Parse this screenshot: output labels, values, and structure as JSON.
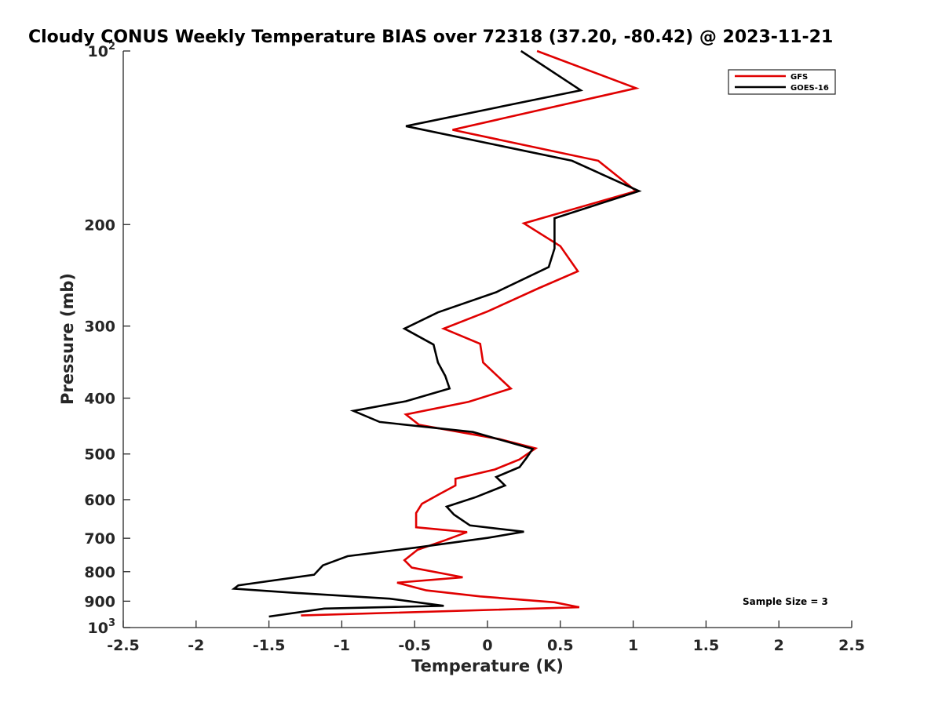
{
  "chart_data": {
    "type": "line",
    "title": "Cloudy CONUS Weekly Temperature BIAS over 72318 (37.20, -80.42) @ 2023-11-21",
    "xlabel": "Temperature (K)",
    "ylabel": "Pressure (mb)",
    "xlim": [
      -2.5,
      2.5
    ],
    "ylim": [
      100,
      1000
    ],
    "yscale": "log",
    "y_reversed": true,
    "grid": false,
    "legend_position": "top-right",
    "x_ticks": [
      {
        "value": -2.5,
        "label": "-2.5"
      },
      {
        "value": -2,
        "label": "-2"
      },
      {
        "value": -1.5,
        "label": "-1.5"
      },
      {
        "value": -1,
        "label": "-1"
      },
      {
        "value": -0.5,
        "label": "-0.5"
      },
      {
        "value": 0,
        "label": "0"
      },
      {
        "value": 0.5,
        "label": "0.5"
      },
      {
        "value": 1,
        "label": "1"
      },
      {
        "value": 1.5,
        "label": "1.5"
      },
      {
        "value": 2,
        "label": "2"
      },
      {
        "value": 2.5,
        "label": "2.5"
      }
    ],
    "y_ticks": [
      {
        "value": 100,
        "base": "10",
        "exp": "2"
      },
      {
        "value": 200,
        "label": "200"
      },
      {
        "value": 300,
        "label": "300"
      },
      {
        "value": 400,
        "label": "400"
      },
      {
        "value": 500,
        "label": "500"
      },
      {
        "value": 600,
        "label": "600"
      },
      {
        "value": 700,
        "label": "700"
      },
      {
        "value": 800,
        "label": "800"
      },
      {
        "value": 900,
        "label": "900"
      },
      {
        "value": 1000,
        "base": "10",
        "exp": "3"
      }
    ],
    "annotation": "Sample Size = 3",
    "series": [
      {
        "name": "GFS",
        "color": "#e00000",
        "points": [
          [
            0.34,
            100
          ],
          [
            1.02,
            116
          ],
          [
            -0.24,
            137
          ],
          [
            0.76,
            155
          ],
          [
            1.02,
            175
          ],
          [
            0.25,
            199
          ],
          [
            0.5,
            218
          ],
          [
            0.62,
            241
          ],
          [
            0.35,
            258
          ],
          [
            0.0,
            283
          ],
          [
            -0.3,
            303
          ],
          [
            -0.05,
            322
          ],
          [
            -0.03,
            347
          ],
          [
            0.16,
            385
          ],
          [
            -0.13,
            406
          ],
          [
            -0.56,
            427
          ],
          [
            -0.47,
            445
          ],
          [
            0.08,
            471
          ],
          [
            0.33,
            489
          ],
          [
            0.22,
            511
          ],
          [
            0.05,
            532
          ],
          [
            -0.22,
            552
          ],
          [
            -0.22,
            567
          ],
          [
            -0.33,
            587
          ],
          [
            -0.45,
            610
          ],
          [
            -0.49,
            633
          ],
          [
            -0.49,
            670
          ],
          [
            -0.14,
            683
          ],
          [
            -0.3,
            707
          ],
          [
            -0.48,
            733
          ],
          [
            -0.57,
            764
          ],
          [
            -0.52,
            787
          ],
          [
            -0.17,
            818
          ],
          [
            -0.62,
            836
          ],
          [
            -0.42,
            862
          ],
          [
            -0.05,
            883
          ],
          [
            0.46,
            904
          ],
          [
            0.63,
            922
          ],
          [
            -1.28,
            953
          ]
        ]
      },
      {
        "name": "GOES-16",
        "color": "#000000",
        "points": [
          [
            0.23,
            100
          ],
          [
            0.64,
            117
          ],
          [
            -0.56,
            135
          ],
          [
            0.58,
            155
          ],
          [
            1.04,
            175
          ],
          [
            0.46,
            195
          ],
          [
            0.46,
            220
          ],
          [
            0.42,
            237
          ],
          [
            0.06,
            262
          ],
          [
            -0.34,
            284
          ],
          [
            -0.57,
            303
          ],
          [
            -0.37,
            323
          ],
          [
            -0.34,
            347
          ],
          [
            -0.29,
            366
          ],
          [
            -0.26,
            385
          ],
          [
            -0.56,
            405
          ],
          [
            -0.92,
            421
          ],
          [
            -0.74,
            440
          ],
          [
            -0.1,
            458
          ],
          [
            0.31,
            490
          ],
          [
            0.27,
            507
          ],
          [
            0.22,
            527
          ],
          [
            0.06,
            548
          ],
          [
            0.12,
            567
          ],
          [
            -0.08,
            594
          ],
          [
            -0.28,
            617
          ],
          [
            -0.23,
            637
          ],
          [
            -0.12,
            665
          ],
          [
            0.25,
            682
          ],
          [
            0.0,
            699
          ],
          [
            -0.48,
            726
          ],
          [
            -0.96,
            752
          ],
          [
            -1.13,
            780
          ],
          [
            -1.19,
            810
          ],
          [
            -1.71,
            845
          ],
          [
            -1.74,
            856
          ],
          [
            -1.37,
            869
          ],
          [
            -0.67,
            891
          ],
          [
            -0.3,
            917
          ],
          [
            -1.12,
            927
          ],
          [
            -1.5,
            957
          ]
        ]
      }
    ]
  }
}
